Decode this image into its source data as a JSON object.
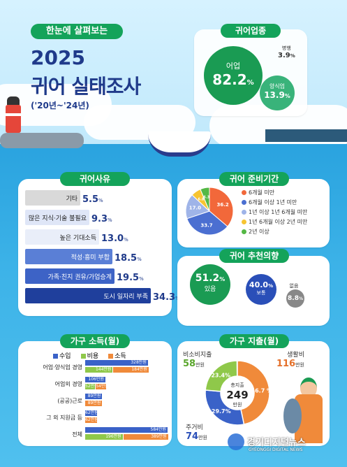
{
  "header": {
    "badge": "한눈에 살펴보는",
    "year": "2025",
    "title": "귀어 실태조사",
    "period": "('20년~'24년)"
  },
  "industry": {
    "title": "귀어업종",
    "fishing": {
      "label": "어업",
      "value": "82.2",
      "unit": "%"
    },
    "aquaculture": {
      "label": "양식업",
      "value": "13.9",
      "unit": "%"
    },
    "combined": {
      "label": "병행",
      "value": "3.9",
      "unit": "%"
    }
  },
  "reasons": {
    "title": "귀어사유",
    "items": [
      {
        "label": "기타",
        "value": "5.5",
        "unit": "%",
        "fraction": 0.16
      },
      {
        "label": "많은 지식·기술 불필요",
        "value": "9.3",
        "unit": "%",
        "fraction": 0.27
      },
      {
        "label": "높은 기대소득",
        "value": "13.0",
        "unit": "%",
        "fraction": 0.38
      },
      {
        "label": "적성·흥미 부합",
        "value": "18.5",
        "unit": "%",
        "fraction": 0.54
      },
      {
        "label": "가족·친지 권유/가업승계",
        "value": "19.5",
        "unit": "%",
        "fraction": 0.57
      },
      {
        "label": "도시 일자리 부족",
        "value": "34.3",
        "unit": "%",
        "fraction": 1.0
      }
    ]
  },
  "prep": {
    "title": "귀어 준비기간",
    "slices": [
      {
        "label": "6개월 미만",
        "value": 36.2,
        "text": "36.2",
        "color": "#f2683a"
      },
      {
        "label": "6개월 이상 1년 미만",
        "value": 33.7,
        "text": "33.7",
        "color": "#4b6fd1"
      },
      {
        "label": "1년 이상 1년 6개월 미만",
        "value": 17.0,
        "text": "17.0",
        "color": "#9fb4e8"
      },
      {
        "label": "1년 6개월 이상 2년 미만",
        "value": 6.8,
        "text": "6.8",
        "color": "#f7c431"
      },
      {
        "label": "2년 이상",
        "value": 6.3,
        "text": "6.3",
        "color": "#54b845"
      }
    ]
  },
  "recommend": {
    "title": "귀어 추천의향",
    "yes": {
      "value": "51.2",
      "unit": "%",
      "label": "있음"
    },
    "normal": {
      "value": "40.0",
      "unit": "%",
      "label": "보통"
    },
    "no": {
      "value": "8.8",
      "unit": "%",
      "label": "없음"
    }
  },
  "income": {
    "title": "가구 소득(월)",
    "legend": [
      "수입",
      "비용",
      "소득"
    ],
    "colors": [
      "#3a62c8",
      "#8fc84a",
      "#f08a3a"
    ],
    "rows": [
      {
        "label": "어업·양식업 경영",
        "bars": [
          {
            "v": 328,
            "t": "328만원"
          },
          {
            "v": 144,
            "t": "144만원"
          },
          {
            "v": 184,
            "t": "184만원"
          }
        ]
      },
      {
        "label": "어업외 경영",
        "bars": [
          {
            "v": 106,
            "t": "106만원"
          },
          {
            "v": 52,
            "t": "52만원"
          },
          {
            "v": 54,
            "t": "54만원"
          }
        ]
      },
      {
        "label": "(공공)근로",
        "bars": [
          {
            "v": 89,
            "t": "89만원"
          },
          {
            "v": 0,
            "t": ""
          },
          {
            "v": 89,
            "t": "89만원"
          }
        ]
      },
      {
        "label": "그 외 지원금 등",
        "bars": [
          {
            "v": 62,
            "t": "62만원"
          },
          {
            "v": 0,
            "t": ""
          },
          {
            "v": 62,
            "t": "62만원"
          }
        ]
      },
      {
        "label": "전체",
        "bars": [
          {
            "v": 584,
            "t": "584만원"
          },
          {
            "v": 196,
            "t": "196만원"
          },
          {
            "v": 389,
            "t": "389만원"
          }
        ]
      }
    ]
  },
  "spend": {
    "title": "가구 지출(월)",
    "center_label": "총지출",
    "center_value": "249",
    "center_unit": "만원",
    "slices": [
      {
        "label": "생활비",
        "amount": "116",
        "unit": "만원",
        "pct": 46.7,
        "text": "46.7 %",
        "color": "#f08a3a"
      },
      {
        "label": "주거비",
        "amount": "74",
        "unit": "만원",
        "pct": 29.7,
        "text": "29.7%",
        "color": "#3a62c8"
      },
      {
        "label": "비소비지출",
        "amount": "58",
        "unit": "만원",
        "pct": 23.4,
        "text": "23.4%",
        "color": "#8fc84a"
      }
    ]
  },
  "watermark": {
    "name": "경기디지털뉴스",
    "sub": "GYEONGGI DIGITAL NEWS"
  }
}
